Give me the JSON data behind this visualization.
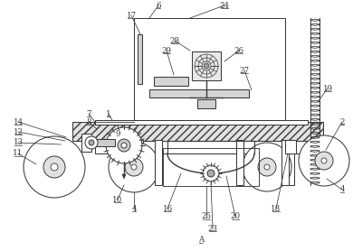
{
  "line_color": "#3a3a3a",
  "lw": 0.75,
  "fig_width": 3.9,
  "fig_height": 2.78,
  "dpi": 100,
  "bg": "white",
  "label_fs": 6.2,
  "hatch": "////",
  "gray_fill": "#e2e2e2",
  "white_fill": "white",
  "light_gray": "#d0d0d0"
}
